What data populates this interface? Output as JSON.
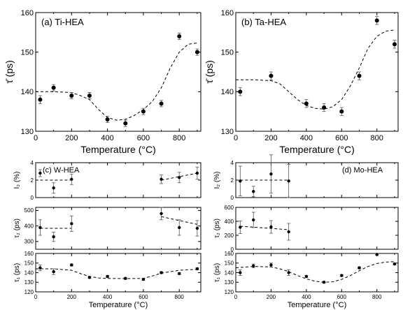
{
  "chart_data": [
    {
      "id": "a",
      "type": "scatter",
      "title": "(a) Ti-HEA",
      "xlabel": "Temperature (°C)",
      "ylabel": "τ̄ (ps)",
      "xlim": [
        0,
        920
      ],
      "ylim": [
        130,
        160
      ],
      "xticks": [
        0,
        200,
        400,
        600,
        800
      ],
      "yticks": [
        130,
        140,
        150,
        160
      ],
      "points": [
        {
          "x": 25,
          "y": 138.0,
          "err": 1.0
        },
        {
          "x": 100,
          "y": 141.0,
          "err": 0.8
        },
        {
          "x": 200,
          "y": 139.0,
          "err": 0.8
        },
        {
          "x": 300,
          "y": 139.0,
          "err": 0.8
        },
        {
          "x": 400,
          "y": 133.0,
          "err": 0.8
        },
        {
          "x": 500,
          "y": 132.0,
          "err": 0.8
        },
        {
          "x": 600,
          "y": 135.0,
          "err": 0.8
        },
        {
          "x": 700,
          "y": 137.0,
          "err": 0.8
        },
        {
          "x": 800,
          "y": 154.0,
          "err": 0.8
        },
        {
          "x": 900,
          "y": 150.0,
          "err": 0.8
        }
      ],
      "fit": [
        [
          0,
          140
        ],
        [
          100,
          140
        ],
        [
          200,
          139.8
        ],
        [
          250,
          139
        ],
        [
          300,
          138
        ],
        [
          350,
          135.5
        ],
        [
          400,
          133.5
        ],
        [
          450,
          132.8
        ],
        [
          500,
          133
        ],
        [
          550,
          134
        ],
        [
          600,
          135.5
        ],
        [
          650,
          137.5
        ],
        [
          700,
          141
        ],
        [
          750,
          146
        ],
        [
          800,
          150
        ],
        [
          850,
          152
        ],
        [
          900,
          152.3
        ]
      ]
    },
    {
      "id": "b",
      "type": "scatter",
      "title": "(b) Ta-HEA",
      "xlabel": "Temperature (°C)",
      "ylabel": "τ̄ (ps)",
      "xlim": [
        0,
        920
      ],
      "ylim": [
        130,
        160
      ],
      "xticks": [
        0,
        200,
        400,
        600,
        800
      ],
      "yticks": [
        130,
        140,
        150,
        160
      ],
      "points": [
        {
          "x": 25,
          "y": 140.0,
          "err": 1.0
        },
        {
          "x": 200,
          "y": 144.0,
          "err": 1.0
        },
        {
          "x": 400,
          "y": 137.0,
          "err": 1.0
        },
        {
          "x": 500,
          "y": 136.0,
          "err": 1.0
        },
        {
          "x": 600,
          "y": 135.0,
          "err": 1.0
        },
        {
          "x": 700,
          "y": 144.0,
          "err": 1.0
        },
        {
          "x": 800,
          "y": 158.0,
          "err": 1.0
        },
        {
          "x": 900,
          "y": 152.0,
          "err": 1.0
        }
      ],
      "fit": [
        [
          0,
          143
        ],
        [
          100,
          143
        ],
        [
          200,
          142.8
        ],
        [
          250,
          142
        ],
        [
          300,
          140
        ],
        [
          350,
          138
        ],
        [
          400,
          136.5
        ],
        [
          450,
          135.8
        ],
        [
          500,
          135.6
        ],
        [
          550,
          136.2
        ],
        [
          600,
          138
        ],
        [
          650,
          141.5
        ],
        [
          700,
          146
        ],
        [
          750,
          151
        ],
        [
          800,
          154
        ],
        [
          850,
          155.3
        ],
        [
          900,
          155.6
        ]
      ]
    },
    {
      "id": "c",
      "type": "scatter",
      "title": "(c) W-HEA",
      "xlabel": "Temperature (°C)",
      "panels": [
        {
          "name": "I2",
          "ylabel": "I₂ (%)",
          "ylim": [
            0,
            4
          ],
          "yticks": [
            0,
            2,
            4
          ],
          "points": [
            {
              "x": 25,
              "y": 2.8,
              "err": 0.4
            },
            {
              "x": 100,
              "y": 1.1,
              "err": 0.6
            },
            {
              "x": 200,
              "y": 2.1,
              "err": 0.6
            },
            {
              "x": 700,
              "y": 2.1,
              "err": 0.5
            },
            {
              "x": 800,
              "y": 2.3,
              "err": 0.6
            },
            {
              "x": 900,
              "y": 2.8,
              "err": 0.7
            }
          ],
          "fits": [
            [
              [
                25,
                2.0
              ],
              [
                200,
                2.0
              ]
            ],
            [
              [
                700,
                2.0
              ],
              [
                900,
                2.8
              ]
            ]
          ]
        },
        {
          "name": "tau2",
          "ylabel": "τ₂ (ps)",
          "ylim": [
            250,
            520
          ],
          "yticks": [
            300,
            400,
            500
          ],
          "points": [
            {
              "x": 25,
              "y": 390,
              "err": 50
            },
            {
              "x": 100,
              "y": 330,
              "err": 30
            },
            {
              "x": 200,
              "y": 415,
              "err": 50
            },
            {
              "x": 700,
              "y": 480,
              "err": 40
            },
            {
              "x": 800,
              "y": 390,
              "err": 50
            },
            {
              "x": 900,
              "y": 385,
              "err": 50
            }
          ],
          "fits": [
            [
              [
                25,
                385
              ],
              [
                200,
                385
              ]
            ],
            [
              [
                700,
                460
              ],
              [
                900,
                410
              ]
            ]
          ]
        },
        {
          "name": "tau1",
          "ylabel": "τ₁ (ps)",
          "ylim": [
            120,
            160
          ],
          "yticks": [
            120,
            130,
            140,
            150,
            160
          ],
          "xticks": [
            0,
            200,
            400,
            600,
            800
          ],
          "points": [
            {
              "x": 25,
              "y": 145,
              "err": 3
            },
            {
              "x": 100,
              "y": 141,
              "err": 3
            },
            {
              "x": 200,
              "y": 148,
              "err": 1
            },
            {
              "x": 300,
              "y": 135,
              "err": 1
            },
            {
              "x": 400,
              "y": 136,
              "err": 1
            },
            {
              "x": 500,
              "y": 134,
              "err": 1
            },
            {
              "x": 600,
              "y": 133,
              "err": 1
            },
            {
              "x": 700,
              "y": 140,
              "err": 1
            },
            {
              "x": 800,
              "y": 139,
              "err": 1
            },
            {
              "x": 900,
              "y": 144,
              "err": 1
            }
          ],
          "fits": [
            [
              [
                0,
                144
              ],
              [
                100,
                144
              ],
              [
                200,
                142.5
              ],
              [
                250,
                139
              ],
              [
                300,
                136
              ],
              [
                350,
                134.5
              ],
              [
                400,
                134
              ],
              [
                500,
                133.8
              ],
              [
                600,
                134
              ],
              [
                650,
                136.5
              ],
              [
                700,
                139.5
              ],
              [
                800,
                142.5
              ],
              [
                900,
                143.5
              ]
            ]
          ]
        }
      ]
    },
    {
      "id": "d",
      "type": "scatter",
      "title": "(d) Mo-HEA",
      "xlabel": "Temperature (°C)",
      "panels": [
        {
          "name": "I2",
          "ylabel": "I₂ (%)",
          "ylim": [
            0,
            4
          ],
          "yticks": [
            0,
            2,
            4
          ],
          "points": [
            {
              "x": 25,
              "y": 1.9,
              "err": 1.7
            },
            {
              "x": 100,
              "y": 0.7,
              "err": 0.6
            },
            {
              "x": 200,
              "y": 2.7,
              "err": 2.2
            },
            {
              "x": 300,
              "y": 1.9,
              "err": 1.9
            }
          ],
          "fits": [
            [
              [
                25,
                2.0
              ],
              [
                300,
                2.0
              ]
            ]
          ]
        },
        {
          "name": "tau2",
          "ylabel": "τ₂ (ps)",
          "ylim": [
            0,
            600
          ],
          "yticks": [
            0,
            200,
            400,
            600
          ],
          "points": [
            {
              "x": 25,
              "y": 315,
              "err": 90
            },
            {
              "x": 100,
              "y": 420,
              "err": 110
            },
            {
              "x": 200,
              "y": 320,
              "err": 90
            },
            {
              "x": 300,
              "y": 250,
              "err": 120
            }
          ],
          "fits": [
            [
              [
                25,
                330
              ],
              [
                300,
                280
              ]
            ]
          ]
        },
        {
          "name": "tau1",
          "ylabel": "τ₁ (ps)",
          "ylim": [
            120,
            160
          ],
          "yticks": [
            120,
            130,
            140,
            150,
            160
          ],
          "xticks": [
            0,
            200,
            400,
            600,
            800
          ],
          "points": [
            {
              "x": 25,
              "y": 140,
              "err": 3
            },
            {
              "x": 100,
              "y": 147,
              "err": 2
            },
            {
              "x": 200,
              "y": 148,
              "err": 2
            },
            {
              "x": 300,
              "y": 140,
              "err": 3
            },
            {
              "x": 400,
              "y": 136,
              "err": 1
            },
            {
              "x": 500,
              "y": 130,
              "err": 1
            },
            {
              "x": 600,
              "y": 137,
              "err": 1
            },
            {
              "x": 700,
              "y": 145,
              "err": 1
            },
            {
              "x": 800,
              "y": 159,
              "err": 1
            },
            {
              "x": 900,
              "y": 149,
              "err": 1
            }
          ],
          "fits": [
            [
              [
                0,
                145
              ],
              [
                100,
                146.5
              ],
              [
                200,
                146
              ],
              [
                250,
                144
              ],
              [
                300,
                141
              ],
              [
                350,
                137
              ],
              [
                400,
                133.5
              ],
              [
                450,
                131
              ],
              [
                500,
                130
              ],
              [
                550,
                130.5
              ],
              [
                600,
                133
              ],
              [
                650,
                137
              ],
              [
                700,
                142
              ],
              [
                750,
                146.5
              ],
              [
                800,
                149.5
              ],
              [
                850,
                151
              ],
              [
                900,
                151.5
              ]
            ]
          ]
        }
      ]
    }
  ]
}
